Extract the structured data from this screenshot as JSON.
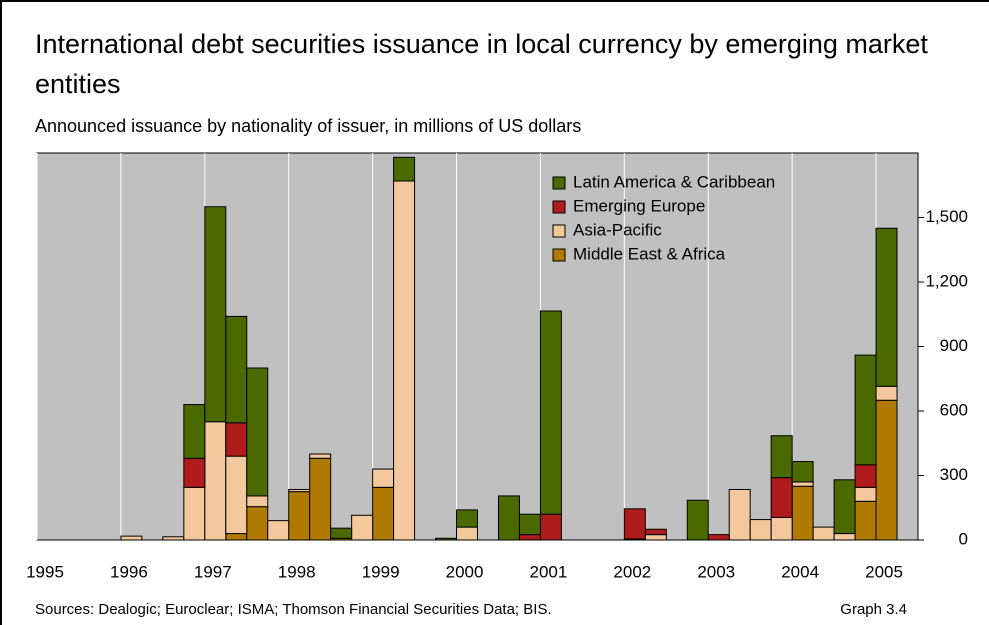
{
  "chart_data": {
    "type": "stacked_bar",
    "title": "International debt securities issuance in local currency by emerging market entities",
    "subtitle": "Announced issuance by nationality of issuer, in millions of US dollars",
    "source": "Sources: Dealogic; Euroclear; ISMA; Thomson Financial Securities Data; BIS.",
    "graph_label": "Graph 3.4",
    "categories": [
      "1995",
      null,
      null,
      null,
      "1996",
      null,
      null,
      null,
      "1997",
      null,
      null,
      null,
      "1998",
      null,
      null,
      null,
      "1999",
      null,
      null,
      null,
      "2000",
      null,
      null,
      null,
      "2001",
      null,
      null,
      null,
      "2002",
      null,
      null,
      null,
      "2003",
      null,
      null,
      null,
      "2004",
      null,
      null,
      null,
      "2005",
      null
    ],
    "series": [
      {
        "name": "Middle East & Africa",
        "color": "#b07a00",
        "values": [
          0,
          0,
          0,
          0,
          0,
          0,
          0,
          0,
          0,
          30,
          155,
          0,
          225,
          380,
          8,
          0,
          245,
          0,
          0,
          0,
          0,
          0,
          0,
          0,
          0,
          0,
          0,
          0,
          0,
          0,
          0,
          0,
          0,
          0,
          0,
          0,
          250,
          0,
          0,
          180,
          650,
          0
        ]
      },
      {
        "name": "Asia-Pacific",
        "color": "#f2c89c",
        "values": [
          0,
          0,
          0,
          0,
          18,
          0,
          15,
          245,
          550,
          360,
          50,
          90,
          10,
          20,
          0,
          115,
          85,
          1670,
          0,
          0,
          60,
          0,
          0,
          0,
          0,
          0,
          0,
          0,
          5,
          25,
          0,
          0,
          0,
          235,
          95,
          105,
          20,
          60,
          30,
          65,
          65,
          0
        ]
      },
      {
        "name": "Emerging Europe",
        "color": "#b01c1c",
        "values": [
          0,
          0,
          0,
          0,
          0,
          0,
          0,
          135,
          0,
          155,
          0,
          0,
          0,
          0,
          0,
          0,
          0,
          0,
          0,
          0,
          0,
          0,
          0,
          25,
          120,
          0,
          0,
          0,
          140,
          25,
          0,
          0,
          25,
          0,
          0,
          185,
          0,
          0,
          0,
          105,
          0,
          0
        ]
      },
      {
        "name": "Latin America & Caribbean",
        "color": "#4a6a00",
        "values": [
          0,
          0,
          0,
          0,
          0,
          0,
          0,
          250,
          1000,
          495,
          595,
          0,
          0,
          0,
          47,
          0,
          0,
          110,
          0,
          8,
          80,
          0,
          205,
          95,
          945,
          0,
          0,
          0,
          0,
          0,
          0,
          185,
          0,
          0,
          0,
          195,
          95,
          0,
          250,
          510,
          735,
          0
        ]
      }
    ],
    "ylim": [
      0,
      1800
    ],
    "yticks": [
      0,
      300,
      600,
      900,
      {
        "value": 1200,
        "label": "1,200"
      },
      {
        "value": 1500,
        "label": "1,500"
      }
    ],
    "y_axis_side": "right",
    "grid": "x",
    "legend": "top-right"
  }
}
